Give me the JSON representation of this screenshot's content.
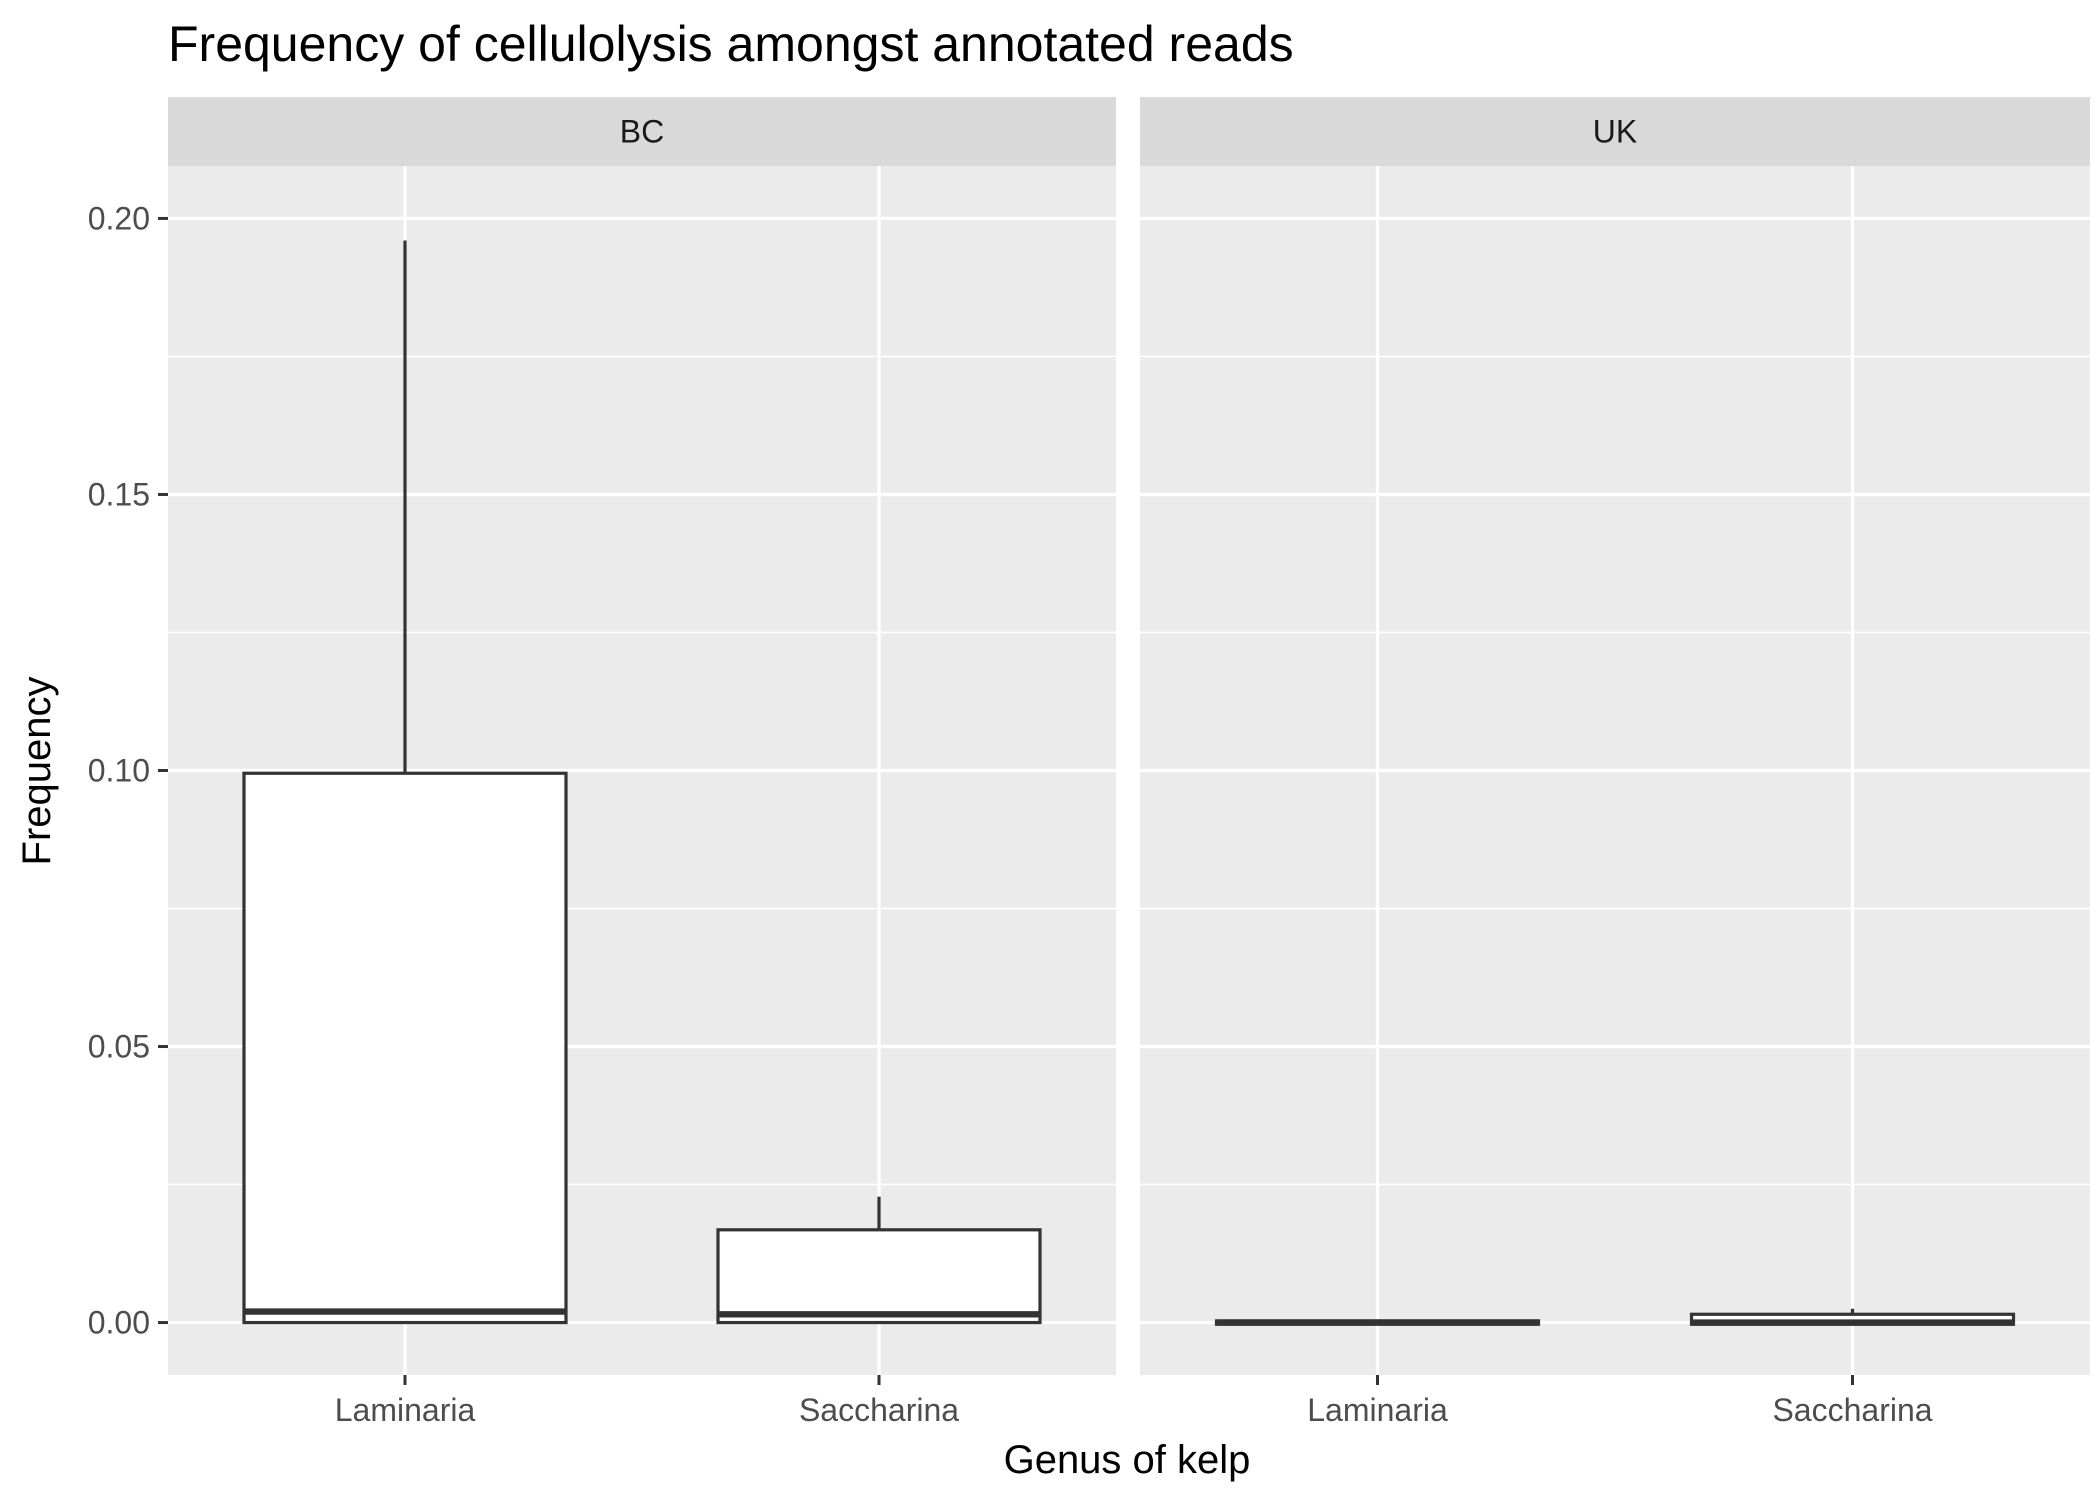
{
  "chart_data": {
    "type": "boxplot",
    "title": "Frequency of cellulolysis amongst annotated reads",
    "xlabel": "Genus of kelp",
    "ylabel": "Frequency",
    "categories": [
      "Laminaria",
      "Saccharina"
    ],
    "ylim": [
      -0.0095,
      0.2095
    ],
    "yticks": [
      0.0,
      0.05,
      0.1,
      0.15,
      0.2
    ],
    "ytick_labels": [
      "0.00",
      "0.05",
      "0.10",
      "0.15",
      "0.20"
    ],
    "grid": true,
    "facets": [
      {
        "label": "BC",
        "boxes": [
          {
            "category": "Laminaria",
            "min": 0.0,
            "q1": 0.0,
            "median": 0.002,
            "q3": 0.0995,
            "max": 0.196
          },
          {
            "category": "Saccharina",
            "min": 0.0,
            "q1": 0.0,
            "median": 0.0015,
            "q3": 0.0168,
            "max": 0.0228
          }
        ]
      },
      {
        "label": "UK",
        "boxes": [
          {
            "category": "Laminaria",
            "min": -0.0003,
            "q1": -0.0003,
            "median": 0.0,
            "q3": 0.0003,
            "max": 0.0005
          },
          {
            "category": "Saccharina",
            "min": -0.0003,
            "q1": -0.0003,
            "median": 0.0,
            "q3": 0.0015,
            "max": 0.0025
          }
        ]
      }
    ]
  },
  "colors": {
    "panel_background": "#ebebeb",
    "strip_background": "#d9d9d9",
    "grid": "#ffffff",
    "box_fill": "#ffffff",
    "box_line": "#333333",
    "tick": "#333333"
  }
}
